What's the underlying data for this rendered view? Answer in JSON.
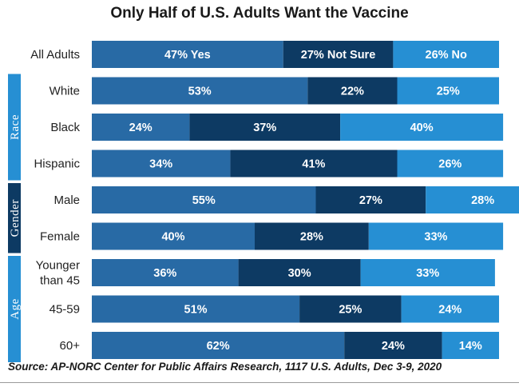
{
  "colors": {
    "yes": "#286aa5",
    "not_sure": "#0d3a63",
    "no": "#268fd3",
    "group_band": "#268fd3",
    "group_band_dark": "#0d3a63"
  },
  "chart_data": {
    "type": "bar",
    "orientation": "horizontal",
    "stacked": true,
    "title": "Only Half of U.S. Adults Want the Vaccine",
    "source": "Source: AP-NORC Center for Public Affairs Research, 1117 U.S. Adults, Dec 3-9, 2020",
    "series_keys": [
      "yes",
      "not_sure",
      "no"
    ],
    "groups": [
      {
        "name": "Race",
        "rows": [
          1,
          3
        ]
      },
      {
        "name": "Gender",
        "rows": [
          4,
          5
        ]
      },
      {
        "name": "Age",
        "rows": [
          6,
          8
        ]
      }
    ],
    "rows": [
      {
        "category": [
          "All Adults"
        ],
        "values": [
          47,
          27,
          26
        ],
        "labels": [
          "47% Yes",
          "27% Not Sure",
          "26% No"
        ]
      },
      {
        "category": [
          "White"
        ],
        "values": [
          53,
          22,
          25
        ],
        "labels": [
          "53%",
          "22%",
          "25%"
        ]
      },
      {
        "category": [
          "Black"
        ],
        "values": [
          24,
          37,
          40
        ],
        "labels": [
          "24%",
          "37%",
          "40%"
        ]
      },
      {
        "category": [
          "Hispanic"
        ],
        "values": [
          34,
          41,
          26
        ],
        "labels": [
          "34%",
          "41%",
          "26%"
        ]
      },
      {
        "category": [
          "Male"
        ],
        "values": [
          55,
          27,
          28
        ],
        "labels": [
          "55%",
          "27%",
          "28%"
        ]
      },
      {
        "category": [
          "Female"
        ],
        "values": [
          40,
          28,
          33
        ],
        "labels": [
          "40%",
          "28%",
          "33%"
        ]
      },
      {
        "category": [
          "Younger",
          "than 45"
        ],
        "values": [
          36,
          30,
          33
        ],
        "labels": [
          "36%",
          "30%",
          "33%"
        ]
      },
      {
        "category": [
          "45-59"
        ],
        "values": [
          51,
          25,
          24
        ],
        "labels": [
          "51%",
          "25%",
          "24%"
        ]
      },
      {
        "category": [
          "60+"
        ],
        "values": [
          62,
          24,
          14
        ],
        "labels": [
          "62%",
          "24%",
          "14%"
        ]
      }
    ]
  }
}
